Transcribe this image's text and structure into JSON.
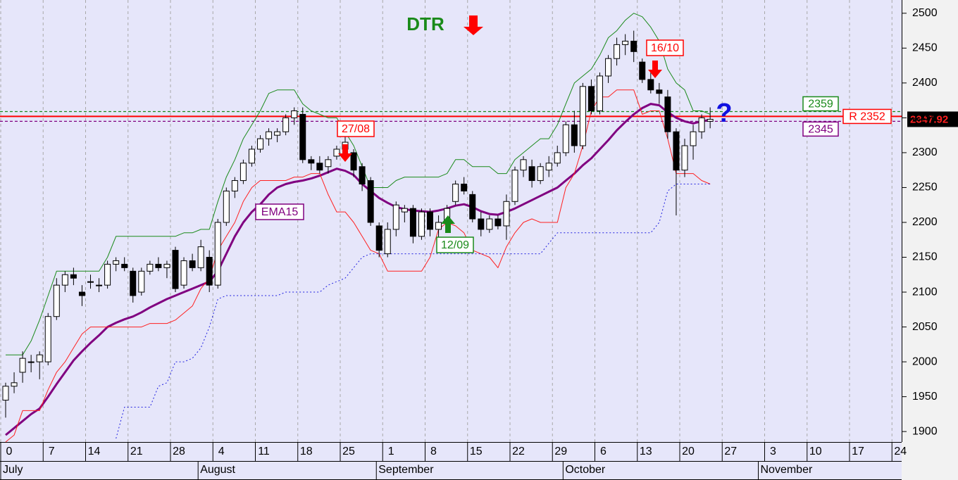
{
  "chart_data": {
    "type": "candlestick",
    "ylim": [
      1885,
      2519
    ],
    "yticks": [
      1900,
      1950,
      2000,
      2050,
      2100,
      2150,
      2200,
      2250,
      2300,
      2350,
      2400,
      2450,
      2500
    ],
    "grid": "x",
    "categories": [
      "0",
      null,
      null,
      null,
      null,
      "7",
      null,
      null,
      null,
      null,
      "14",
      null,
      null,
      null,
      null,
      "21",
      null,
      null,
      null,
      null,
      "28",
      null,
      null,
      null,
      null,
      "4",
      null,
      null,
      null,
      null,
      "11",
      null,
      null,
      null,
      null,
      "18",
      null,
      null,
      null,
      null,
      "25",
      null,
      null,
      null,
      null,
      "1",
      null,
      null,
      null,
      null,
      "8",
      null,
      null,
      null,
      null,
      "15",
      null,
      null,
      null,
      null,
      "22",
      null,
      null,
      null,
      null,
      "29",
      null,
      null,
      null,
      null,
      "6",
      null,
      null,
      null,
      null,
      "13",
      null,
      null,
      null,
      null,
      "20",
      null,
      null,
      null,
      null,
      "27",
      null,
      null,
      null,
      null,
      "3",
      null,
      null,
      null,
      null,
      "10",
      null,
      null,
      null,
      null,
      "17",
      null,
      null,
      null,
      null,
      "24"
    ],
    "months": [
      "July",
      null,
      null,
      null,
      null,
      null,
      null,
      null,
      null,
      null,
      null,
      null,
      null,
      null,
      null,
      null,
      null,
      null,
      null,
      null,
      null,
      null,
      null,
      null,
      "August",
      null,
      null,
      null,
      null,
      null,
      null,
      null,
      null,
      null,
      null,
      null,
      null,
      null,
      null,
      null,
      null,
      null,
      null,
      null,
      null,
      "September",
      null,
      null,
      null,
      null,
      null,
      null,
      null,
      null,
      null,
      null,
      null,
      null,
      null,
      null,
      null,
      null,
      null,
      null,
      null,
      null,
      null,
      "October",
      null,
      null,
      null,
      null,
      null,
      null,
      null,
      null,
      null,
      null,
      null,
      null,
      null,
      null,
      null,
      null,
      null,
      null,
      null,
      null,
      null,
      null,
      "November",
      null,
      null,
      null,
      null,
      null,
      null,
      null,
      null,
      null,
      null,
      null,
      null,
      null,
      null,
      null
    ],
    "open": [
      1945,
      1965,
      1985,
      2000,
      2000,
      2000,
      2065,
      2110,
      2125,
      2100,
      2115,
      2110,
      2110,
      2140,
      2140,
      2130,
      2100,
      2130,
      2140,
      2135,
      2160,
      2110,
      2145,
      2135,
      2150,
      2110,
      2200,
      2245,
      2260,
      2285,
      2305,
      2320,
      2325,
      2330,
      2350,
      2355,
      2290,
      2285,
      2280,
      2295,
      2305,
      2300,
      2280,
      2260,
      2195,
      2155,
      2190,
      2215,
      2220,
      2180,
      2215,
      2190,
      2200,
      2230,
      2255,
      2240,
      2205,
      2190,
      2205,
      2195,
      2230,
      2275,
      2280,
      2260,
      2275,
      2285,
      2300,
      2340,
      2310,
      2395,
      2360,
      2410,
      2435,
      2455,
      2460,
      2430,
      2405,
      2390,
      2380,
      2330,
      2275,
      2310,
      2330,
      2345,
      null,
      null,
      null,
      null,
      null,
      null,
      null,
      null,
      null,
      null,
      null,
      null,
      null,
      null,
      null,
      null,
      null,
      null,
      null,
      null,
      null,
      null
    ],
    "high": [
      1970,
      1985,
      2015,
      2010,
      2015,
      2070,
      2120,
      2130,
      2135,
      2110,
      2125,
      2120,
      2145,
      2150,
      2150,
      2135,
      2135,
      2145,
      2150,
      2145,
      2165,
      2150,
      2155,
      2175,
      2160,
      2205,
      2250,
      2265,
      2290,
      2310,
      2325,
      2335,
      2335,
      2355,
      2365,
      2365,
      2295,
      2295,
      2295,
      2310,
      2325,
      2305,
      2285,
      2265,
      2200,
      2200,
      2230,
      2225,
      2225,
      2220,
      2220,
      2210,
      2225,
      2260,
      2265,
      2245,
      2215,
      2210,
      2210,
      2240,
      2280,
      2295,
      2290,
      2285,
      2295,
      2310,
      2345,
      2360,
      2400,
      2405,
      2415,
      2440,
      2465,
      2470,
      2475,
      2435,
      2415,
      2400,
      2390,
      2335,
      2320,
      2340,
      2355,
      2365,
      null,
      null,
      null,
      null,
      null,
      null,
      null,
      null,
      null,
      null,
      null,
      null,
      null,
      null,
      null,
      null,
      null,
      null,
      null,
      null,
      null,
      null
    ],
    "low": [
      1920,
      1955,
      1970,
      1985,
      1975,
      1995,
      2060,
      2100,
      2110,
      2080,
      2105,
      2100,
      2105,
      2130,
      2130,
      2085,
      2095,
      2125,
      2130,
      2120,
      2100,
      2105,
      2130,
      2130,
      2100,
      2105,
      2195,
      2235,
      2255,
      2280,
      2300,
      2310,
      2315,
      2325,
      2340,
      2285,
      2275,
      2270,
      2270,
      2290,
      2295,
      2265,
      2245,
      2195,
      2150,
      2150,
      2180,
      2200,
      2170,
      2175,
      2180,
      2175,
      2195,
      2225,
      2240,
      2200,
      2180,
      2185,
      2190,
      2175,
      2225,
      2265,
      2250,
      2255,
      2265,
      2280,
      2295,
      2300,
      2305,
      2355,
      2355,
      2400,
      2425,
      2440,
      2430,
      2400,
      2385,
      2370,
      2320,
      2210,
      2265,
      2290,
      2320,
      2335,
      null,
      null,
      null,
      null,
      null,
      null,
      null,
      null,
      null,
      null,
      null,
      null,
      null,
      null,
      null,
      null,
      null,
      null,
      null,
      null,
      null,
      null
    ],
    "close": [
      1965,
      1970,
      2005,
      2000,
      2010,
      2065,
      2110,
      2125,
      2120,
      2095,
      2115,
      2110,
      2140,
      2145,
      2135,
      2095,
      2130,
      2140,
      2135,
      2140,
      2105,
      2145,
      2135,
      2165,
      2110,
      2200,
      2245,
      2260,
      2285,
      2305,
      2320,
      2330,
      2330,
      2350,
      2360,
      2290,
      2285,
      2275,
      2290,
      2305,
      2315,
      2275,
      2255,
      2200,
      2160,
      2190,
      2225,
      2220,
      2180,
      2215,
      2190,
      2200,
      2220,
      2255,
      2245,
      2205,
      2190,
      2205,
      2195,
      2230,
      2275,
      2290,
      2260,
      2280,
      2285,
      2300,
      2340,
      2310,
      2395,
      2360,
      2410,
      2435,
      2455,
      2460,
      2445,
      2405,
      2390,
      2385,
      2330,
      2275,
      2310,
      2330,
      2350,
      2347.92,
      null,
      null,
      null,
      null,
      null,
      null,
      null,
      null,
      null,
      null,
      null,
      null,
      null,
      null,
      null,
      null,
      null,
      null,
      null,
      null,
      null,
      null
    ],
    "lines": [
      {
        "name": "EMA15",
        "color": "#800080",
        "width": 3,
        "style": "solid",
        "values": [
          1895,
          1905,
          1915,
          1925,
          1933,
          1950,
          1968,
          1985,
          2002,
          2015,
          2027,
          2038,
          2050,
          2056,
          2061,
          2065,
          2071,
          2078,
          2084,
          2090,
          2095,
          2100,
          2105,
          2110,
          2115,
          2130,
          2155,
          2180,
          2200,
          2215,
          2226,
          2240,
          2250,
          2255,
          2258,
          2260,
          2263,
          2267,
          2272,
          2277,
          2274,
          2268,
          2255,
          2245,
          2235,
          2228,
          2222,
          2219,
          2217,
          2216,
          2215,
          2217,
          2220,
          2224,
          2226,
          2222,
          2216,
          2212,
          2211,
          2215,
          2220,
          2226,
          2232,
          2238,
          2244,
          2250,
          2260,
          2270,
          2282,
          2292,
          2305,
          2318,
          2332,
          2344,
          2355,
          2364,
          2370,
          2368,
          2358,
          2350,
          2345,
          2342,
          2345,
          2347,
          null,
          null,
          null,
          null,
          null,
          null,
          null,
          null,
          null,
          null,
          null,
          null,
          null,
          null,
          null,
          null,
          null,
          null,
          null,
          null,
          null,
          null
        ]
      },
      {
        "color": "#1a8a1a",
        "width": 1,
        "style": "solid",
        "values": [
          2010,
          2010,
          2010,
          2030,
          2060,
          2095,
          2130,
          2130,
          2130,
          2130,
          2130,
          2130,
          2150,
          2180,
          2180,
          2180,
          2180,
          2180,
          2180,
          2180,
          2180,
          2185,
          2185,
          2190,
          2190,
          2230,
          2265,
          2290,
          2320,
          2340,
          2360,
          2385,
          2390,
          2390,
          2390,
          2370,
          2360,
          2355,
          2350,
          2350,
          2330,
          2310,
          2280,
          2250,
          2250,
          2250,
          2260,
          2265,
          2265,
          2265,
          2265,
          2265,
          2270,
          2290,
          2290,
          2280,
          2280,
          2280,
          2270,
          2270,
          2290,
          2300,
          2310,
          2320,
          2320,
          2340,
          2370,
          2400,
          2410,
          2420,
          2440,
          2465,
          2475,
          2490,
          2500,
          2495,
          2480,
          2460,
          2420,
          2400,
          2390,
          2360,
          2360,
          2355,
          null,
          null,
          null,
          null,
          null,
          null,
          null,
          null,
          null,
          null,
          null,
          null,
          null,
          null,
          null,
          null,
          null,
          null,
          null,
          null,
          null,
          null
        ]
      },
      {
        "color": "#ff2020",
        "width": 1,
        "style": "solid",
        "values": [
          1885,
          1895,
          1930,
          1930,
          1930,
          1960,
          1985,
          2000,
          2020,
          2040,
          2050,
          2050,
          2050,
          2050,
          2050,
          2050,
          2050,
          2055,
          2055,
          2055,
          2060,
          2070,
          2080,
          2105,
          2120,
          2160,
          2180,
          2200,
          2230,
          2250,
          2260,
          2260,
          2260,
          2260,
          2265,
          2265,
          2270,
          2270,
          2240,
          2215,
          2215,
          2200,
          2180,
          2160,
          2155,
          2130,
          2130,
          2130,
          2130,
          2130,
          2150,
          2190,
          2200,
          2195,
          2185,
          2160,
          2155,
          2150,
          2135,
          2165,
          2185,
          2200,
          2205,
          2200,
          2200,
          2200,
          2250,
          2270,
          2310,
          2360,
          2380,
          2380,
          2390,
          2390,
          2390,
          2355,
          2360,
          2360,
          2320,
          2270,
          2270,
          2270,
          2260,
          2255,
          null,
          null,
          null,
          null,
          null,
          null,
          null,
          null,
          null,
          null,
          null,
          null,
          null,
          null,
          null,
          null,
          null,
          null,
          null,
          null,
          null,
          null
        ]
      },
      {
        "color": "#2020e0",
        "width": 1,
        "style": "dotted",
        "values": [
          null,
          null,
          null,
          null,
          null,
          null,
          null,
          null,
          null,
          null,
          null,
          null,
          null,
          1890,
          1935,
          1935,
          1935,
          1935,
          1965,
          1970,
          2000,
          2000,
          2005,
          2020,
          2050,
          2090,
          2095,
          2095,
          2095,
          2095,
          2095,
          2095,
          2095,
          2100,
          2100,
          2100,
          2100,
          2100,
          2110,
          2115,
          2120,
          2135,
          2150,
          2155,
          2155,
          2155,
          2155,
          2155,
          2155,
          2155,
          2155,
          2155,
          2155,
          2155,
          2155,
          2155,
          2155,
          2155,
          2155,
          2155,
          2155,
          2155,
          2155,
          2155,
          2170,
          2185,
          2185,
          2185,
          2185,
          2185,
          2185,
          2185,
          2185,
          2185,
          2185,
          2185,
          2185,
          2200,
          2245,
          2255,
          2255,
          2255,
          2255,
          2255,
          null,
          null,
          null,
          null,
          null,
          null,
          null,
          null,
          null,
          null,
          null,
          null,
          null,
          null,
          null,
          null,
          null,
          null,
          null,
          null,
          null,
          null
        ]
      }
    ],
    "levels": [
      {
        "value": 2359,
        "color": "#1a8a1a",
        "style": "dashed"
      },
      {
        "value": 2352,
        "label": "R 2352",
        "color": "#ff0000",
        "style": "solid"
      },
      {
        "value": 2345,
        "color": "#800080",
        "style": "dashed"
      }
    ],
    "last_price": 2347.92,
    "annotations": [
      "DTR",
      "27/08",
      "16/10",
      "12/09",
      "?"
    ]
  }
}
